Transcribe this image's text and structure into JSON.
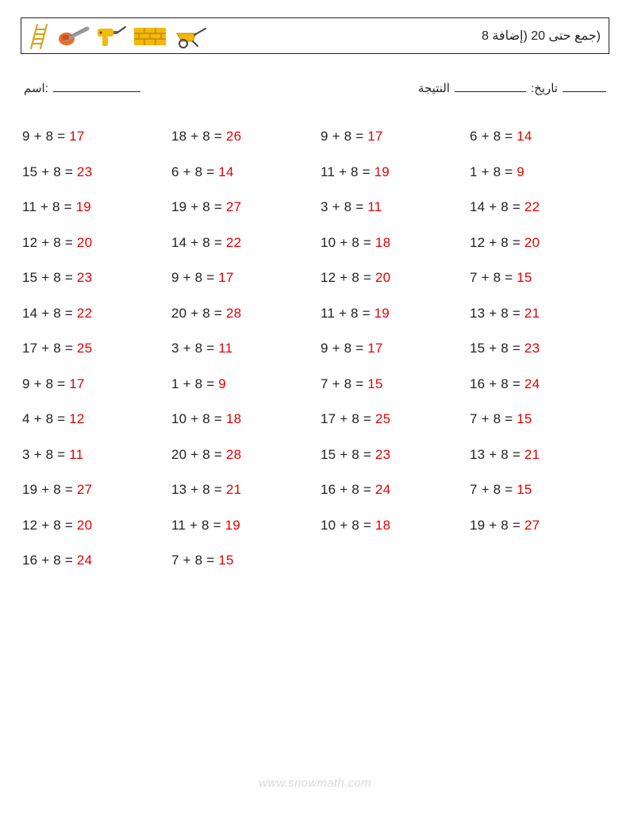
{
  "title": "(جمع حتى 20 (إضافة 8",
  "meta": {
    "name_label": "اسم:",
    "score_label": "النتيجة",
    "date_label": ":تاريخ"
  },
  "columns": [
    [
      {
        "a": 9,
        "b": 8,
        "sum": 17
      },
      {
        "a": 15,
        "b": 8,
        "sum": 23
      },
      {
        "a": 11,
        "b": 8,
        "sum": 19
      },
      {
        "a": 12,
        "b": 8,
        "sum": 20
      },
      {
        "a": 15,
        "b": 8,
        "sum": 23
      },
      {
        "a": 14,
        "b": 8,
        "sum": 22
      },
      {
        "a": 17,
        "b": 8,
        "sum": 25
      },
      {
        "a": 9,
        "b": 8,
        "sum": 17
      },
      {
        "a": 4,
        "b": 8,
        "sum": 12
      },
      {
        "a": 3,
        "b": 8,
        "sum": 11
      },
      {
        "a": 19,
        "b": 8,
        "sum": 27
      },
      {
        "a": 12,
        "b": 8,
        "sum": 20
      },
      {
        "a": 16,
        "b": 8,
        "sum": 24
      }
    ],
    [
      {
        "a": 18,
        "b": 8,
        "sum": 26
      },
      {
        "a": 6,
        "b": 8,
        "sum": 14
      },
      {
        "a": 19,
        "b": 8,
        "sum": 27
      },
      {
        "a": 14,
        "b": 8,
        "sum": 22
      },
      {
        "a": 9,
        "b": 8,
        "sum": 17
      },
      {
        "a": 20,
        "b": 8,
        "sum": 28
      },
      {
        "a": 3,
        "b": 8,
        "sum": 11
      },
      {
        "a": 1,
        "b": 8,
        "sum": 9
      },
      {
        "a": 10,
        "b": 8,
        "sum": 18
      },
      {
        "a": 20,
        "b": 8,
        "sum": 28
      },
      {
        "a": 13,
        "b": 8,
        "sum": 21
      },
      {
        "a": 11,
        "b": 8,
        "sum": 19
      },
      {
        "a": 7,
        "b": 8,
        "sum": 15
      }
    ],
    [
      {
        "a": 9,
        "b": 8,
        "sum": 17
      },
      {
        "a": 11,
        "b": 8,
        "sum": 19
      },
      {
        "a": 3,
        "b": 8,
        "sum": 11
      },
      {
        "a": 10,
        "b": 8,
        "sum": 18
      },
      {
        "a": 12,
        "b": 8,
        "sum": 20
      },
      {
        "a": 11,
        "b": 8,
        "sum": 19
      },
      {
        "a": 9,
        "b": 8,
        "sum": 17
      },
      {
        "a": 7,
        "b": 8,
        "sum": 15
      },
      {
        "a": 17,
        "b": 8,
        "sum": 25
      },
      {
        "a": 15,
        "b": 8,
        "sum": 23
      },
      {
        "a": 16,
        "b": 8,
        "sum": 24
      },
      {
        "a": 10,
        "b": 8,
        "sum": 18
      }
    ],
    [
      {
        "a": 6,
        "b": 8,
        "sum": 14
      },
      {
        "a": 1,
        "b": 8,
        "sum": 9
      },
      {
        "a": 14,
        "b": 8,
        "sum": 22
      },
      {
        "a": 12,
        "b": 8,
        "sum": 20
      },
      {
        "a": 7,
        "b": 8,
        "sum": 15
      },
      {
        "a": 13,
        "b": 8,
        "sum": 21
      },
      {
        "a": 15,
        "b": 8,
        "sum": 23
      },
      {
        "a": 16,
        "b": 8,
        "sum": 24
      },
      {
        "a": 7,
        "b": 8,
        "sum": 15
      },
      {
        "a": 13,
        "b": 8,
        "sum": 21
      },
      {
        "a": 7,
        "b": 8,
        "sum": 15
      },
      {
        "a": 19,
        "b": 8,
        "sum": 27
      }
    ]
  ],
  "style": {
    "text_color": "#222222",
    "answer_color": "#e30000",
    "background": "#ffffff",
    "font_size_problem": 17,
    "row_height": 44.5,
    "footer_color": "#d9d9d9"
  },
  "footer": "www.snowmath.com"
}
